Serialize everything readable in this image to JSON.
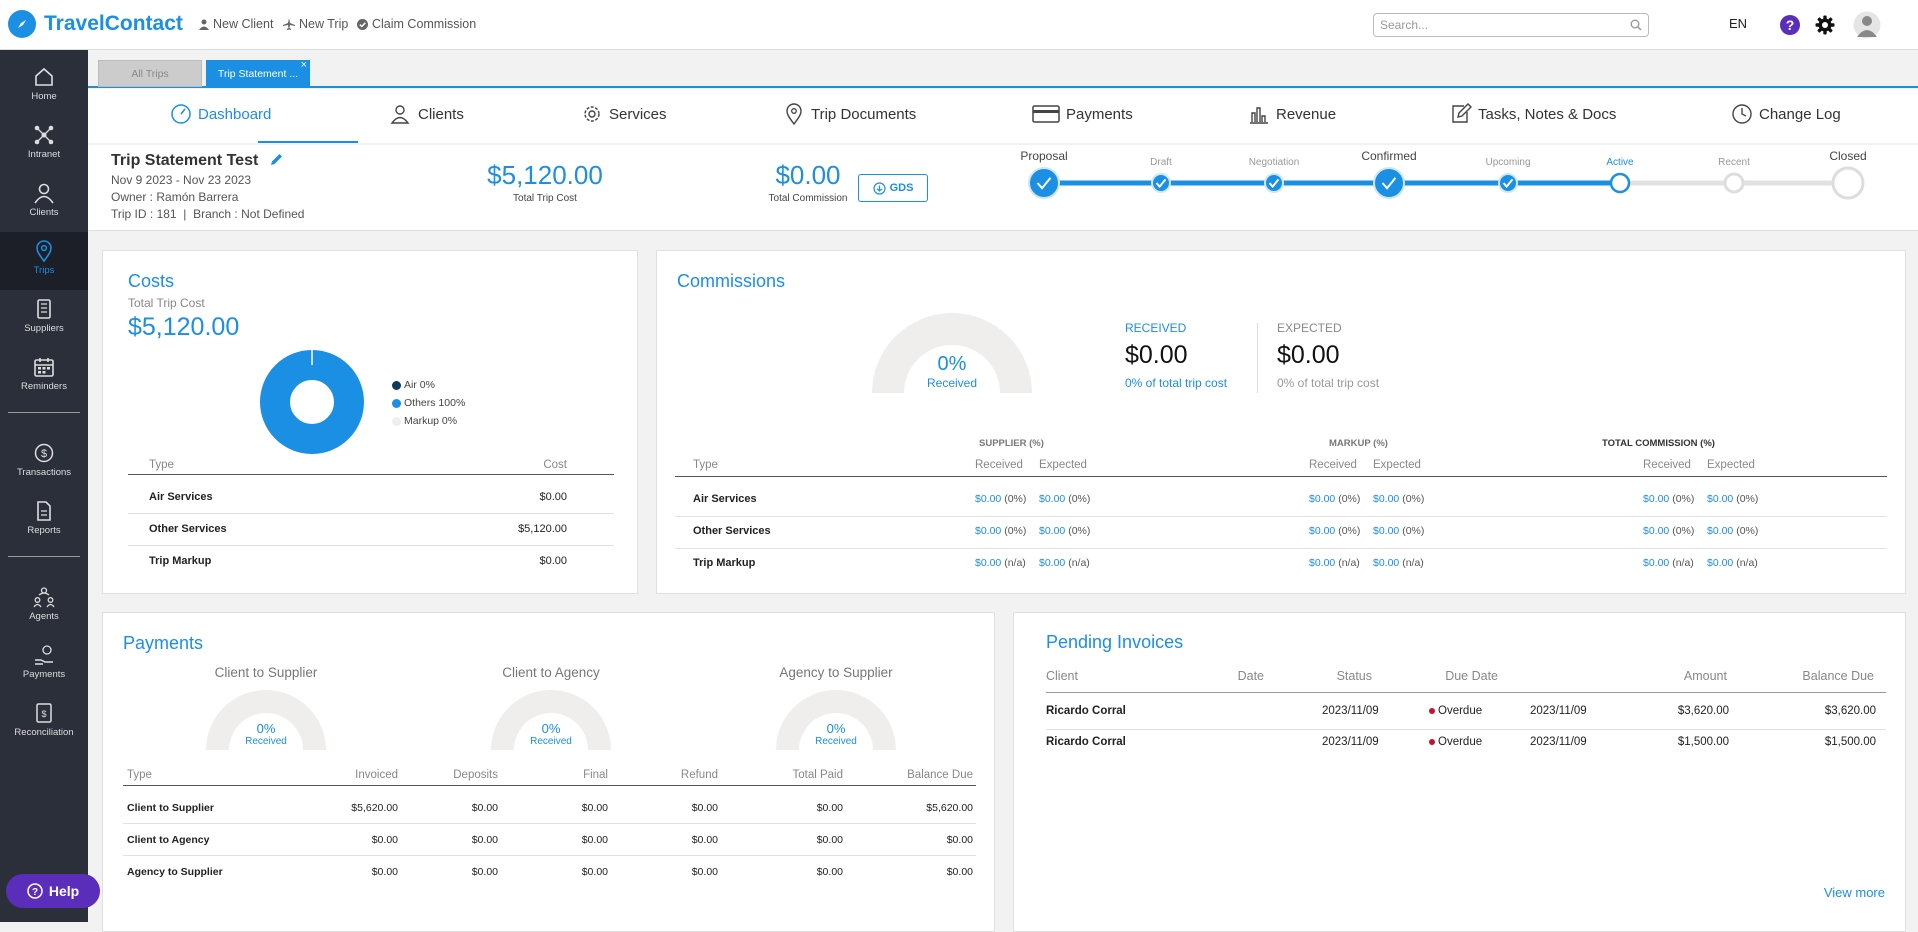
{
  "app": {
    "name": "TravelContact"
  },
  "topbar": {
    "new_client": "New Client",
    "new_trip": "New Trip",
    "claim_commission": "Claim Commission",
    "search_placeholder": "Search...",
    "language": "EN"
  },
  "sidebar": {
    "items": [
      {
        "label": "Home",
        "icon": "home-icon"
      },
      {
        "label": "Intranet",
        "icon": "network-icon"
      },
      {
        "label": "Clients",
        "icon": "clients-icon"
      },
      {
        "label": "Trips",
        "icon": "map-pin-icon"
      },
      {
        "label": "Suppliers",
        "icon": "suppliers-icon"
      },
      {
        "label": "Reminders",
        "icon": "calendar-icon"
      },
      {
        "label": "Transactions",
        "icon": "transactions-icon"
      },
      {
        "label": "Reports",
        "icon": "report-icon"
      },
      {
        "label": "Agents",
        "icon": "agents-icon"
      },
      {
        "label": "Payments",
        "icon": "payments-icon"
      },
      {
        "label": "Reconciliation",
        "icon": "reconciliation-icon"
      }
    ],
    "help": "Help"
  },
  "doc_tabs": {
    "all_trips": "All Trips",
    "current": "Trip Statement ...",
    "close": "×"
  },
  "main_nav": [
    {
      "label": "Dashboard",
      "icon": "gauge-icon"
    },
    {
      "label": "Clients",
      "icon": "users-icon"
    },
    {
      "label": "Services",
      "icon": "gear-icon"
    },
    {
      "label": "Trip Documents",
      "icon": "map-pin-icon"
    },
    {
      "label": "Payments",
      "icon": "credit-card-icon"
    },
    {
      "label": "Revenue",
      "icon": "bar-chart-icon"
    },
    {
      "label": "Tasks, Notes & Docs",
      "icon": "edit-icon"
    },
    {
      "label": "Change Log",
      "icon": "clock-icon"
    }
  ],
  "trip": {
    "title": "Trip Statement Test",
    "dates": "Nov 9 2023 - Nov 23 2023",
    "owner_label": "Owner :",
    "owner": "Ramón Barrera",
    "trip_id_label": "Trip ID :",
    "trip_id": "181",
    "branch_label": "Branch :",
    "branch": "Not Defined",
    "total_cost": "$5,120.00",
    "total_cost_label": "Total Trip Cost",
    "total_commission": "$0.00",
    "total_commission_label": "Total Commission",
    "gds": "GDS"
  },
  "stages": [
    {
      "label": "Proposal",
      "state": "done",
      "major": true
    },
    {
      "label": "Draft",
      "state": "done",
      "major": false
    },
    {
      "label": "Negotiation",
      "state": "done",
      "major": false
    },
    {
      "label": "Confirmed",
      "state": "done",
      "major": true
    },
    {
      "label": "Upcoming",
      "state": "done",
      "major": false
    },
    {
      "label": "Active",
      "state": "current",
      "major": false
    },
    {
      "label": "Recent",
      "state": "todo",
      "major": false
    },
    {
      "label": "Closed",
      "state": "todo",
      "major": true
    }
  ],
  "costs": {
    "title": "Costs",
    "subtitle": "Total Trip Cost",
    "total": "$5,120.00",
    "legend": [
      {
        "label": "Air 0%",
        "color": "#0e3a5c"
      },
      {
        "label": "Others 100%",
        "color": "#1a8fe3"
      },
      {
        "label": "Markup 0%",
        "color": "#eeeeee"
      }
    ],
    "headers": {
      "type": "Type",
      "cost": "Cost"
    },
    "rows": [
      {
        "type": "Air Services",
        "cost": "$0.00"
      },
      {
        "type": "Other Services",
        "cost": "$5,120.00"
      },
      {
        "type": "Trip Markup",
        "cost": "$0.00"
      }
    ]
  },
  "commissions": {
    "title": "Commissions",
    "gauge_pct": "0%",
    "gauge_label": "Received",
    "received_label": "RECEIVED",
    "received_value": "$0.00",
    "received_note": "0% of total trip cost",
    "expected_label": "EXPECTED",
    "expected_value": "$0.00",
    "expected_note": "0% of total trip cost",
    "groups": {
      "supplier": "SUPPLIER (%)",
      "markup": "MARKUP (%)",
      "total": "TOTAL COMMISSION (%)"
    },
    "type_label": "Type",
    "received_col": "Received",
    "expected_col": "Expected",
    "rows": [
      {
        "type": "Air Services",
        "amt": "$0.00",
        "pct": "(0%)"
      },
      {
        "type": "Other Services",
        "amt": "$0.00",
        "pct": "(0%)"
      },
      {
        "type": "Trip Markup",
        "amt": "$0.00",
        "pct": "(n/a)"
      }
    ]
  },
  "payments": {
    "title": "Payments",
    "gauges": [
      {
        "title": "Client to Supplier",
        "pct": "0%",
        "label": "Received"
      },
      {
        "title": "Client to Agency",
        "pct": "0%",
        "label": "Received"
      },
      {
        "title": "Agency to Supplier",
        "pct": "0%",
        "label": "Received"
      }
    ],
    "headers": [
      "Type",
      "Invoiced",
      "Deposits",
      "Final",
      "Refund",
      "Total Paid",
      "Balance Due"
    ],
    "rows": [
      [
        "Client to Supplier",
        "$5,620.00",
        "$0.00",
        "$0.00",
        "$0.00",
        "$0.00",
        "$5,620.00"
      ],
      [
        "Client to Agency",
        "$0.00",
        "$0.00",
        "$0.00",
        "$0.00",
        "$0.00",
        "$0.00"
      ],
      [
        "Agency to Supplier",
        "$0.00",
        "$0.00",
        "$0.00",
        "$0.00",
        "$0.00",
        "$0.00"
      ]
    ]
  },
  "invoices": {
    "title": "Pending Invoices",
    "headers": [
      "Client",
      "Date",
      "Status",
      "Due Date",
      "Amount",
      "Balance Due"
    ],
    "rows": [
      [
        "Ricardo Corral",
        "2023/11/09",
        "Overdue",
        "2023/11/09",
        "$3,620.00",
        "$3,620.00"
      ],
      [
        "Ricardo Corral",
        "2023/11/09",
        "Overdue",
        "2023/11/09",
        "$1,500.00",
        "$1,500.00"
      ]
    ],
    "overdue_color": "#c8102e",
    "view_more": "View more"
  }
}
